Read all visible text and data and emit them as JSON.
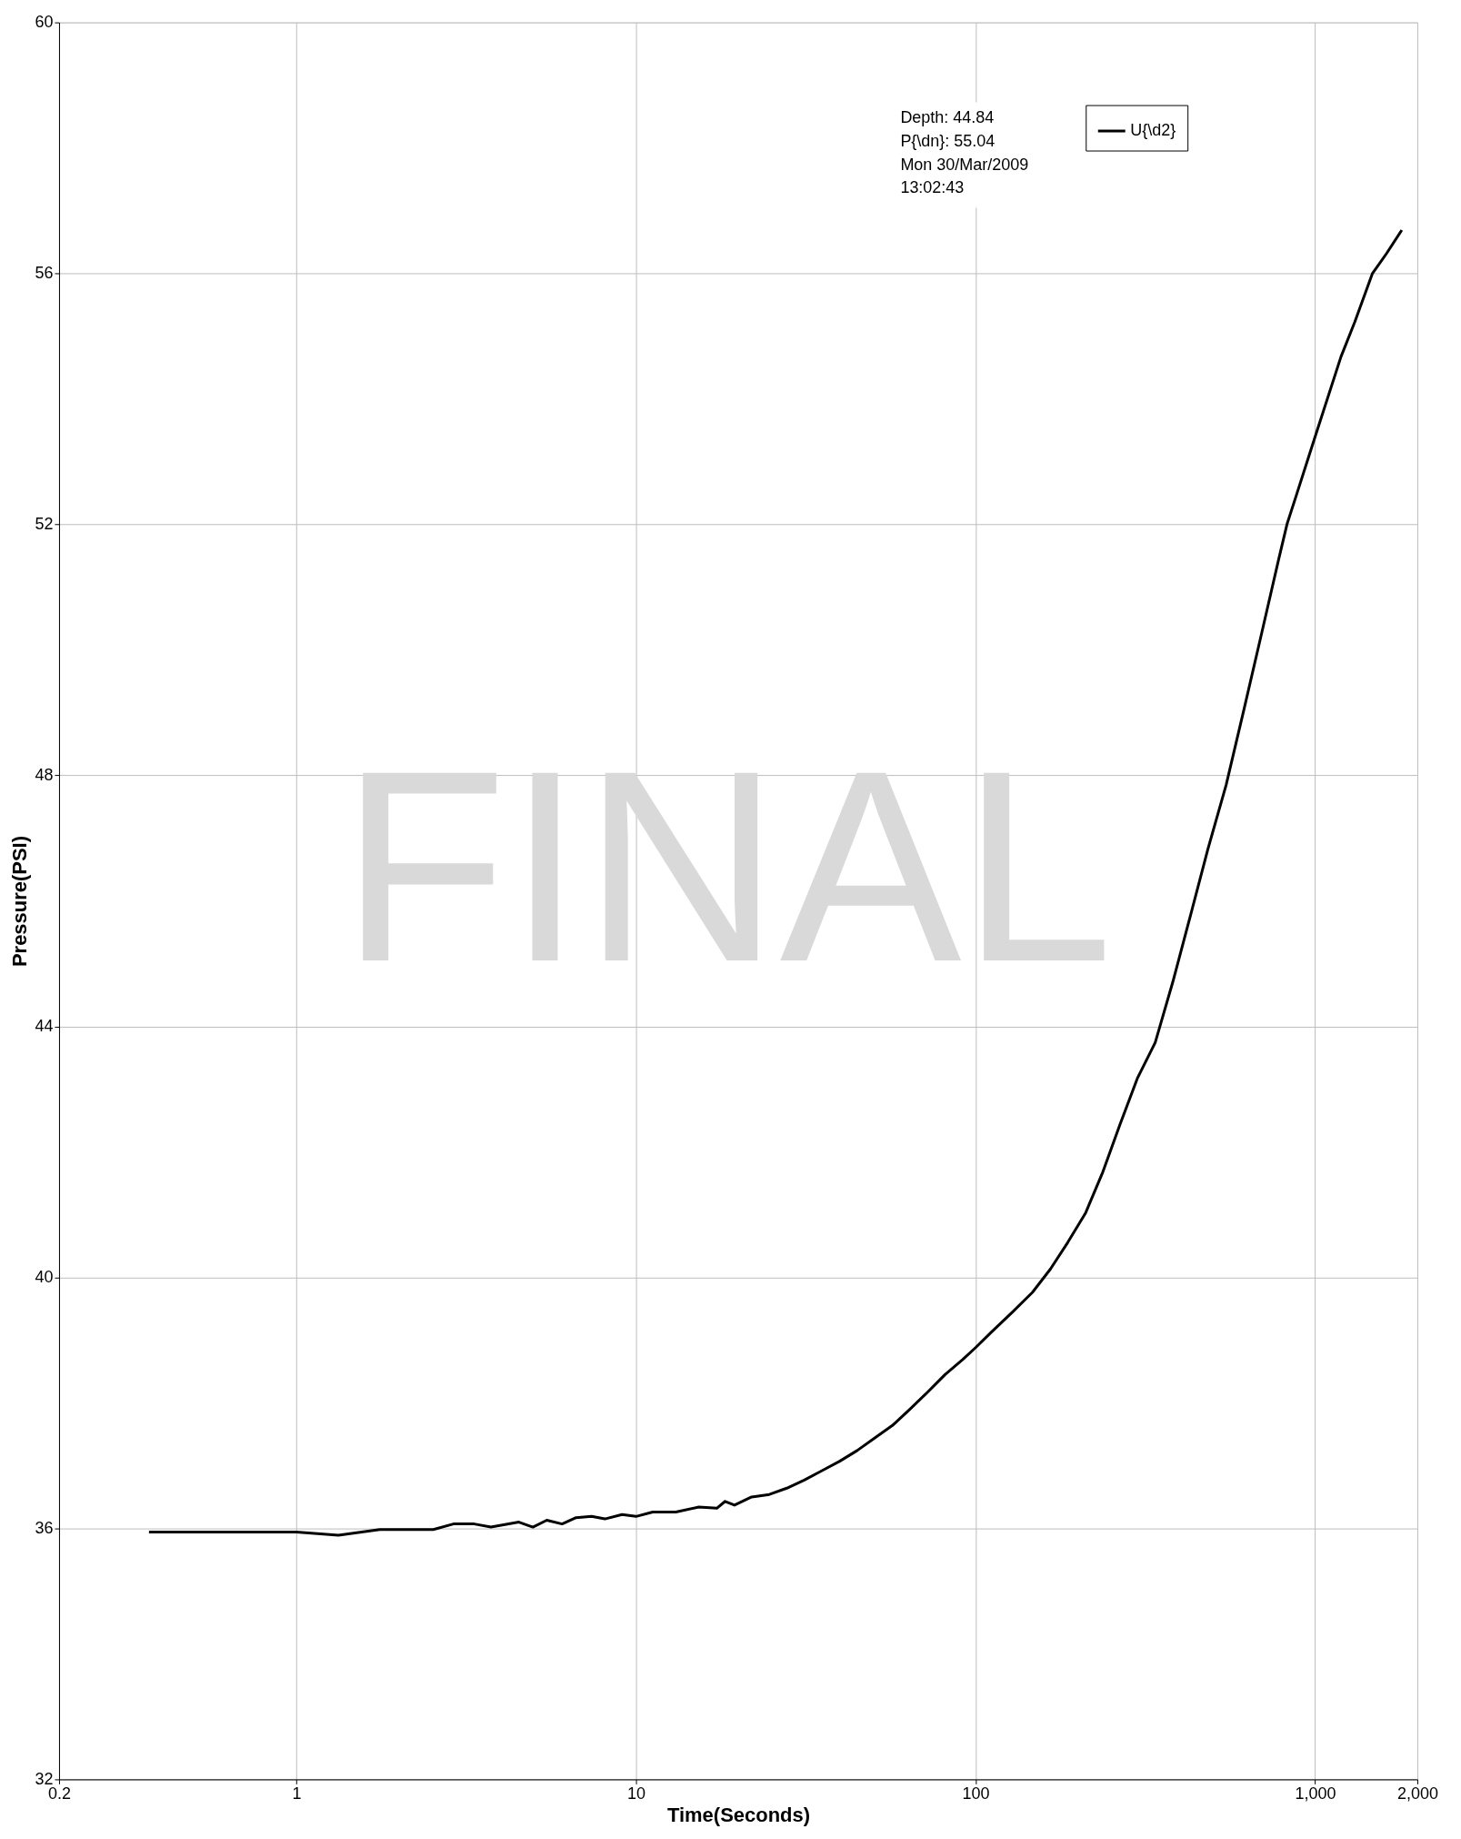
{
  "chart_data": {
    "type": "line",
    "xlabel": "Time(Seconds)",
    "ylabel": "Pressure(PSI)",
    "annotations": [
      "Depth: 44.84",
      "P{\\dn}: 55.04",
      "Mon 30/Mar/2009",
      "13:02:43",
      "FINAL"
    ],
    "log": "x",
    "grid": true,
    "legend": "top right",
    "line_style": "solid",
    "marker": "none",
    "xlim": [
      0.2,
      2000
    ],
    "xticks": [
      0.2,
      1,
      10,
      100,
      {
        "value": 1000,
        "label": "1,000"
      },
      {
        "value": 2000,
        "label": "2,000"
      }
    ],
    "ylim": [
      32,
      60
    ],
    "yticks": [
      32,
      36,
      40,
      44,
      48,
      52,
      56,
      60
    ],
    "series": [
      {
        "name": "U{\\d2}",
        "color": "#000000",
        "x": [
          0.368,
          1,
          1.33,
          1.76,
          2.53,
          2.9,
          3.34,
          3.74,
          4.52,
          4.97,
          5.46,
          6.06,
          6.66,
          7.4,
          8.1,
          9.1,
          10,
          11.2,
          13.1,
          15.3,
          17.3,
          18.3,
          19.5,
          21.9,
          24.7,
          27.8,
          31.3,
          35.3,
          39.8,
          44.8,
          50.5,
          56.9,
          64.1,
          72.2,
          81.3,
          91.6,
          100,
          111,
          128,
          147,
          166,
          187,
          211,
          237,
          266,
          300,
          338,
          381,
          429,
          483,
          547,
          617,
          694,
          782,
          826,
          881,
          1000,
          1191,
          1309,
          1475,
          1624,
          1799
        ],
        "values": [
          35.94,
          35.94,
          35.89,
          35.98,
          35.98,
          36.07,
          36.07,
          36.02,
          36.1,
          36.02,
          36.13,
          36.07,
          36.17,
          36.19,
          36.15,
          36.22,
          36.19,
          36.26,
          36.26,
          36.34,
          36.32,
          36.43,
          36.37,
          36.5,
          36.54,
          36.64,
          36.77,
          36.92,
          37.07,
          37.24,
          37.44,
          37.64,
          37.9,
          38.17,
          38.45,
          38.69,
          38.88,
          39.12,
          39.44,
          39.76,
          40.13,
          40.56,
          41.03,
          41.68,
          42.43,
          43.18,
          43.74,
          44.71,
          45.76,
          46.82,
          47.85,
          49.05,
          50.24,
          51.46,
          52.0,
          52.47,
          53.4,
          54.67,
          55.23,
          56.0,
          56.32,
          56.69
        ]
      }
    ]
  }
}
